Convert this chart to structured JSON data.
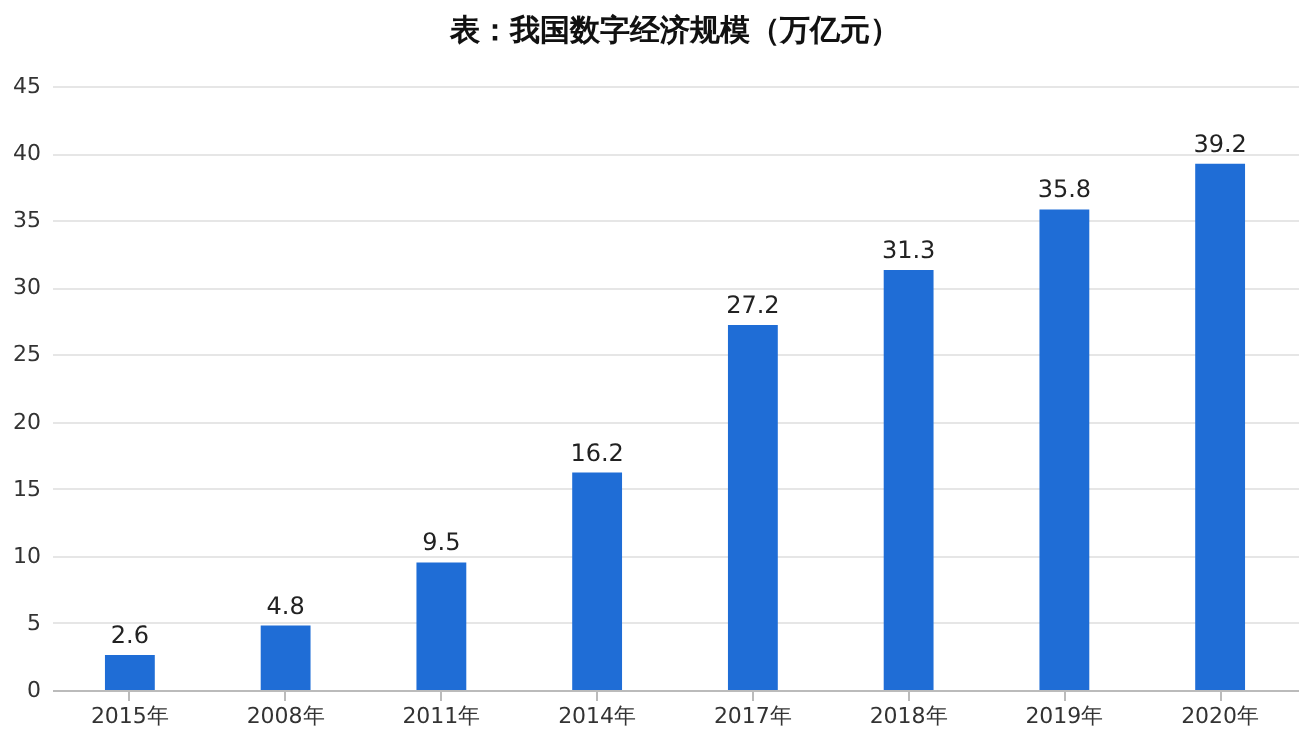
{
  "chart_data": {
    "type": "bar",
    "title": "表：我国数字经济规模（万亿元）",
    "categories": [
      "2015年",
      "2008年",
      "2011年",
      "2014年",
      "2017年",
      "2018年",
      "2019年",
      "2020年"
    ],
    "values": [
      2.6,
      4.8,
      9.5,
      16.2,
      27.2,
      31.3,
      35.8,
      39.2
    ],
    "color": "#1f6dd6",
    "ylim": [
      0,
      45
    ],
    "yticks": [
      0,
      5,
      10,
      15,
      20,
      25,
      30,
      35,
      40,
      45
    ],
    "grid": "y",
    "data_labels": true
  }
}
